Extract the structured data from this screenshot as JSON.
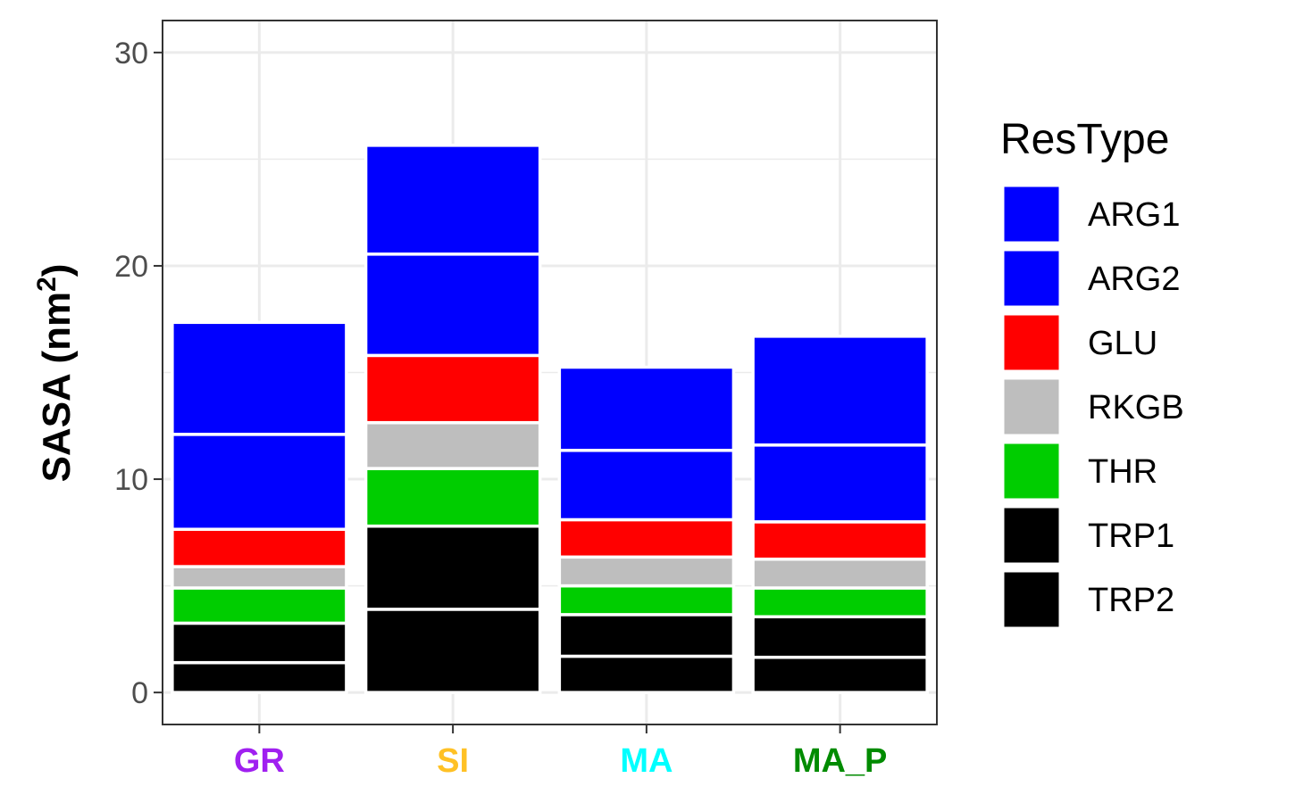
{
  "chart_data": {
    "type": "bar",
    "stacked": true,
    "categories": [
      "GR",
      "SI",
      "MA",
      "MA_P"
    ],
    "category_colors": {
      "GR": "#A020F0",
      "SI": "#FFC125",
      "MA": "#00FFFF",
      "MA_P": "#008B00"
    },
    "ylabel_main": "SASA (nm",
    "ylabel_sup": "2",
    "ylabel_end": ")",
    "ylim": [
      -1.5,
      31.5
    ],
    "y_ticks": [
      0,
      10,
      20,
      30
    ],
    "y_tick_labels": [
      "0",
      "10",
      "20",
      "30"
    ],
    "grid": true,
    "legend": {
      "title": "ResType",
      "position": "right",
      "entries": [
        {
          "label": "ARG1",
          "color": "#0000FF"
        },
        {
          "label": "ARG2",
          "color": "#0000FF"
        },
        {
          "label": "GLU",
          "color": "#FF0000"
        },
        {
          "label": "RKGB",
          "color": "#BEBEBE"
        },
        {
          "label": "THR",
          "color": "#00CD00"
        },
        {
          "label": "TRP1",
          "color": "#000000"
        },
        {
          "label": "TRP2",
          "color": "#000000"
        }
      ]
    },
    "stack_order_bottom_to_top": [
      "TRP2",
      "TRP1",
      "THR",
      "RKGB",
      "GLU",
      "ARG2",
      "ARG1"
    ],
    "series": [
      {
        "name": "TRP2",
        "color": "#000000",
        "values": [
          1.4,
          3.9,
          1.7,
          1.65
        ]
      },
      {
        "name": "TRP1",
        "color": "#000000",
        "values": [
          1.85,
          3.9,
          1.95,
          1.9
        ]
      },
      {
        "name": "THR",
        "color": "#00CD00",
        "values": [
          1.65,
          2.7,
          1.35,
          1.35
        ]
      },
      {
        "name": "RKGB",
        "color": "#BEBEBE",
        "values": [
          1.0,
          2.15,
          1.35,
          1.35
        ]
      },
      {
        "name": "GLU",
        "color": "#FF0000",
        "values": [
          1.75,
          3.15,
          1.75,
          1.75
        ]
      },
      {
        "name": "ARG2",
        "color": "#0000FF",
        "values": [
          4.45,
          4.75,
          3.25,
          3.6
        ]
      },
      {
        "name": "ARG1",
        "color": "#0000FF",
        "values": [
          5.25,
          5.1,
          3.9,
          5.1
        ]
      }
    ]
  }
}
